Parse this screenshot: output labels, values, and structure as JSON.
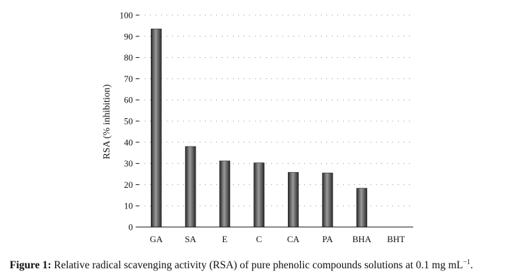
{
  "chart_data": {
    "type": "bar",
    "categories": [
      "GA",
      "SA",
      "E",
      "C",
      "CA",
      "PA",
      "BHA",
      "BHT"
    ],
    "values": [
      93.5,
      38,
      31.2,
      30.3,
      25.8,
      25.5,
      18.3,
      0
    ],
    "ylabel": "RSA (% inhibition)",
    "xlabel": "",
    "ylim": [
      0,
      100
    ],
    "yticks": [
      0,
      10,
      20,
      30,
      40,
      50,
      60,
      70,
      80,
      90,
      100
    ],
    "grid": "dotted horizontal",
    "bar_color": "#444444"
  },
  "caption": {
    "label": "Figure 1:",
    "text": "Relative radical scavenging activity (RSA) of pure phenolic compounds solutions at 0.1 mg mL",
    "superscript": "−1",
    "end": "."
  }
}
